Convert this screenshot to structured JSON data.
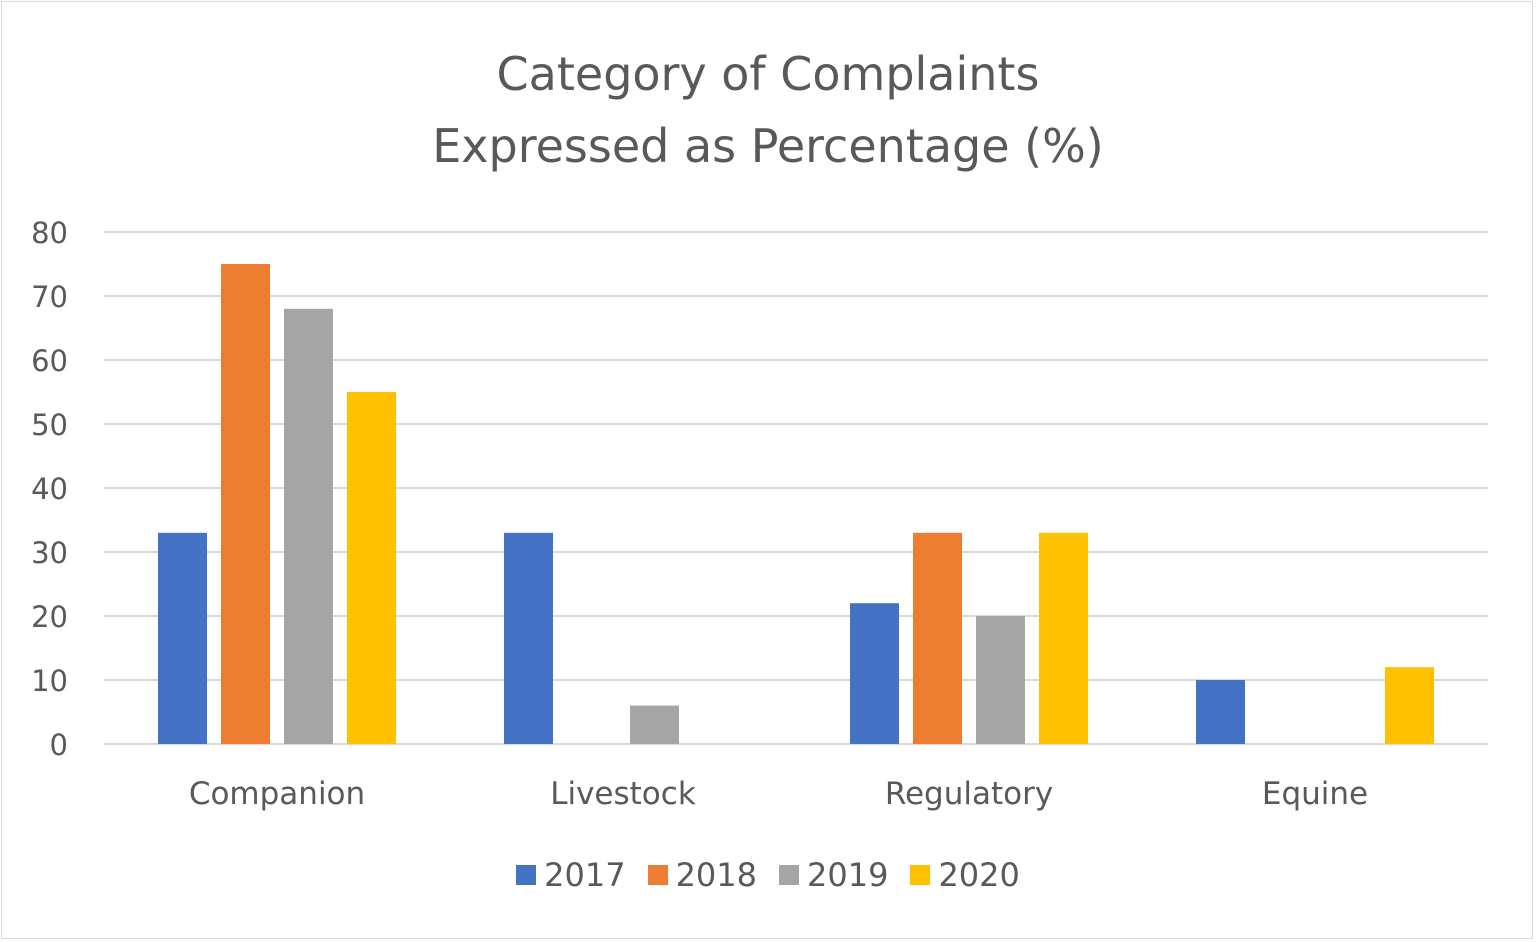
{
  "chart_data": {
    "type": "bar",
    "title": "Category of Complaints",
    "subtitle": "Expressed as Percentage (%)",
    "xlabel": "",
    "ylabel": "",
    "categories": [
      "Companion",
      "Livestock",
      "Regulatory",
      "Equine"
    ],
    "series": [
      {
        "name": "2017",
        "color": "#4472C4",
        "values": [
          33,
          33,
          22,
          10
        ]
      },
      {
        "name": "2018",
        "color": "#ED7D31",
        "values": [
          75,
          0,
          33,
          0
        ]
      },
      {
        "name": "2019",
        "color": "#A5A5A5",
        "values": [
          68,
          6,
          20,
          0
        ]
      },
      {
        "name": "2020",
        "color": "#FFC000",
        "values": [
          55,
          0,
          33,
          12
        ]
      }
    ],
    "ylim": [
      0,
      80
    ],
    "yticks": [
      0,
      10,
      20,
      30,
      40,
      50,
      60,
      70,
      80
    ],
    "grid": true,
    "legend": "bottom"
  }
}
